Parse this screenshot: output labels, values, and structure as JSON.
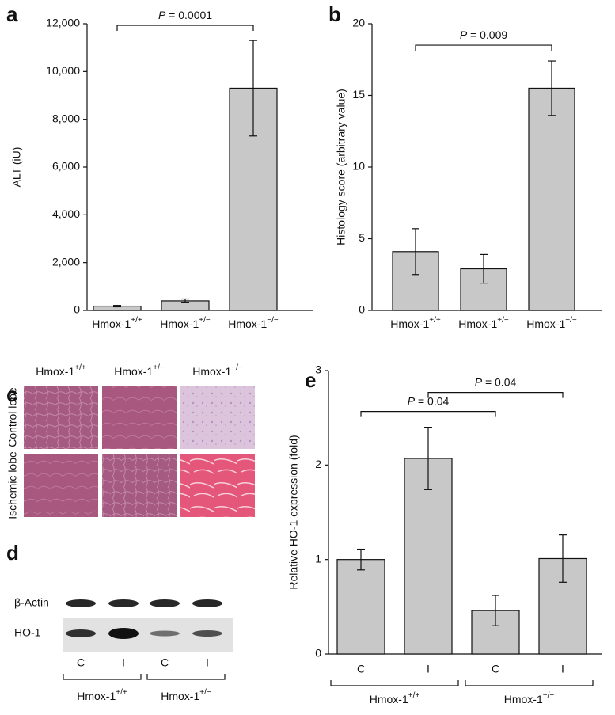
{
  "chart_data": [
    {
      "type": "bar",
      "panel_label": "a",
      "ylabel": "ALT (iU)",
      "categories": [
        "Hmox-1+/+",
        "Hmox-1+/−",
        "Hmox-1−/−"
      ],
      "values": [
        180,
        400,
        9300
      ],
      "errors": [
        30,
        80,
        2000
      ],
      "color": "#c8c8c8",
      "ylim": [
        0,
        12000
      ],
      "yticks": [
        0,
        {
          "value": 2000,
          "label": "2,000"
        },
        {
          "value": 4000,
          "label": "4,000"
        },
        {
          "value": 6000,
          "label": "6,000"
        },
        {
          "value": 8000,
          "label": "8,000"
        },
        {
          "value": 10000,
          "label": "10,000"
        },
        {
          "value": 12000,
          "label": "12,000"
        }
      ],
      "annotations": [
        {
          "text": "P = 0.0001",
          "between": [
            0,
            2
          ]
        }
      ]
    },
    {
      "type": "bar",
      "panel_label": "b",
      "ylabel": "Histology score (arbitrary value)",
      "categories": [
        "Hmox-1+/+",
        "Hmox-1+/−",
        "Hmox-1−/−"
      ],
      "values": [
        4.1,
        2.9,
        15.5
      ],
      "errors": [
        1.6,
        1.0,
        1.9
      ],
      "color": "#c8c8c8",
      "ylim": [
        0,
        20
      ],
      "yticks": [
        0,
        5,
        10,
        15,
        20
      ],
      "annotations": [
        {
          "text": "P = 0.009",
          "between": [
            0,
            2
          ]
        }
      ]
    },
    {
      "type": "bar",
      "panel_label": "e",
      "ylabel": "Relative HO-1 expression (fold)",
      "categories": [
        "C",
        "I",
        "C",
        "I"
      ],
      "groups": [
        "Hmox-1+/+",
        "Hmox-1+/−"
      ],
      "values": [
        1.0,
        2.07,
        0.46,
        1.01
      ],
      "errors": [
        0.11,
        0.33,
        0.16,
        0.25
      ],
      "color": "#c8c8c8",
      "ylim": [
        0,
        3
      ],
      "yticks": [
        0,
        1,
        2,
        3
      ],
      "annotations": [
        {
          "text": "P = 0.04",
          "between": [
            0,
            2
          ]
        },
        {
          "text": "P = 0.04",
          "between": [
            1,
            3
          ]
        }
      ]
    }
  ],
  "histology": {
    "panel_label": "c",
    "columns": [
      "Hmox-1+/+",
      "Hmox-1+/−",
      "Hmox-1−/−"
    ],
    "rows": [
      "Control lobe",
      "Ischemic lobe"
    ]
  },
  "blot": {
    "panel_label": "d",
    "bands": [
      "β-Actin",
      "HO-1"
    ],
    "lanes": [
      "C",
      "I",
      "C",
      "I"
    ],
    "groups": [
      "Hmox-1+/+",
      "Hmox-1+/−"
    ]
  }
}
